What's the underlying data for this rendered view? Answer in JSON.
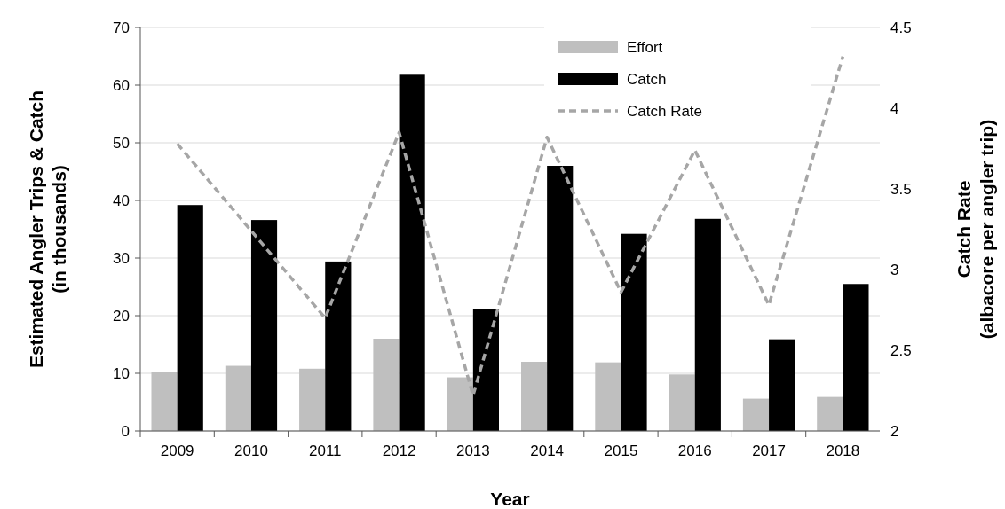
{
  "chart_data": {
    "type": "bar",
    "xlabel": "Year",
    "ylabel": "Estimated Angler Trips & Catch\n(in thousands)",
    "y2label": "Catch Rate\n(albacore per angler trip)",
    "categories": [
      "2009",
      "2010",
      "2011",
      "2012",
      "2013",
      "2014",
      "2015",
      "2016",
      "2017",
      "2018"
    ],
    "series": [
      {
        "name": "Effort",
        "color": "#bfbfbf",
        "values": [
          10.3,
          11.3,
          10.8,
          16.0,
          9.3,
          12.0,
          11.9,
          9.8,
          5.6,
          5.9
        ]
      },
      {
        "name": "Catch",
        "color": "#000000",
        "values": [
          39.2,
          36.6,
          29.4,
          61.8,
          21.1,
          46.0,
          34.2,
          36.8,
          15.9,
          25.5
        ]
      },
      {
        "name": "Catch Rate",
        "type": "line",
        "axis": "y2",
        "color": "#a6a6a6",
        "line_style": "dashed",
        "values": [
          3.78,
          3.24,
          2.7,
          3.85,
          2.22,
          3.82,
          2.86,
          3.74,
          2.78,
          4.32
        ]
      }
    ],
    "ylim": [
      0,
      70
    ],
    "yticks": [
      0,
      10,
      20,
      30,
      40,
      50,
      60,
      70
    ],
    "y2lim": [
      2,
      4.5
    ],
    "y2ticks": [
      2,
      2.5,
      3,
      3.5,
      4,
      4.5
    ],
    "grid": "y",
    "legend": "top right"
  }
}
